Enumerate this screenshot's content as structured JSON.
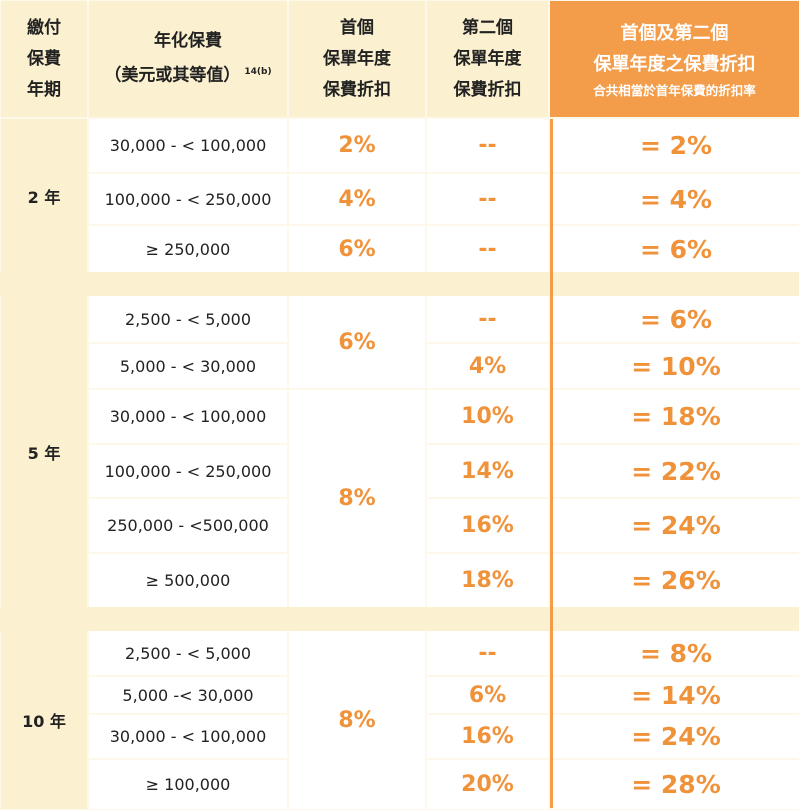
{
  "header": {
    "col1": [
      "繳付",
      "保費",
      "年期"
    ],
    "col2_title": "年化保費",
    "col2_sub": "（美元或其等值）",
    "col2_note": "14(b)",
    "col3": [
      "首個",
      "保單年度",
      "保費折扣"
    ],
    "col4": [
      "第二個",
      "保單年度",
      "保費折扣"
    ],
    "col5_l1": "首個及第二個",
    "col5_l2": "保單年度之保費折扣",
    "col5_sub": "合共相當於首年保費的折扣率"
  },
  "groups": [
    {
      "term": "2 年",
      "rows": [
        {
          "range": "30,000 - < 100,000",
          "first": "2%",
          "second": "--",
          "total": "= 2%"
        },
        {
          "range": "100,000 - < 250,000",
          "first": "4%",
          "second": "--",
          "total": "= 4%"
        },
        {
          "range": "≥ 250,000",
          "first": "6%",
          "second": "--",
          "total": "= 6%"
        }
      ]
    },
    {
      "term": "5 年",
      "first_merged": [
        "6%",
        "8%"
      ],
      "rows": [
        {
          "range": "2,500 - < 5,000",
          "second": "--",
          "total": "= 6%"
        },
        {
          "range": "5,000 - < 30,000",
          "second": "4%",
          "total": "= 10%"
        },
        {
          "range": "30,000 - < 100,000",
          "second": "10%",
          "total": "= 18%"
        },
        {
          "range": "100,000 - < 250,000",
          "second": "14%",
          "total": "= 22%"
        },
        {
          "range": "250,000 - <500,000",
          "second": "16%",
          "total": "= 24%"
        },
        {
          "range": "≥ 500,000",
          "second": "18%",
          "total": "= 26%"
        }
      ]
    },
    {
      "term": "10 年",
      "first_merged": [
        "8%"
      ],
      "rows": [
        {
          "range": "2,500 - < 5,000",
          "second": "--",
          "total": "= 8%"
        },
        {
          "range": "5,000 -< 30,000",
          "second": "6%",
          "total": "= 14%"
        },
        {
          "range": "30,000 - < 100,000",
          "second": "16%",
          "total": "= 24%"
        },
        {
          "range": "≥ 100,000",
          "second": "20%",
          "total": "= 28%"
        }
      ]
    }
  ]
}
